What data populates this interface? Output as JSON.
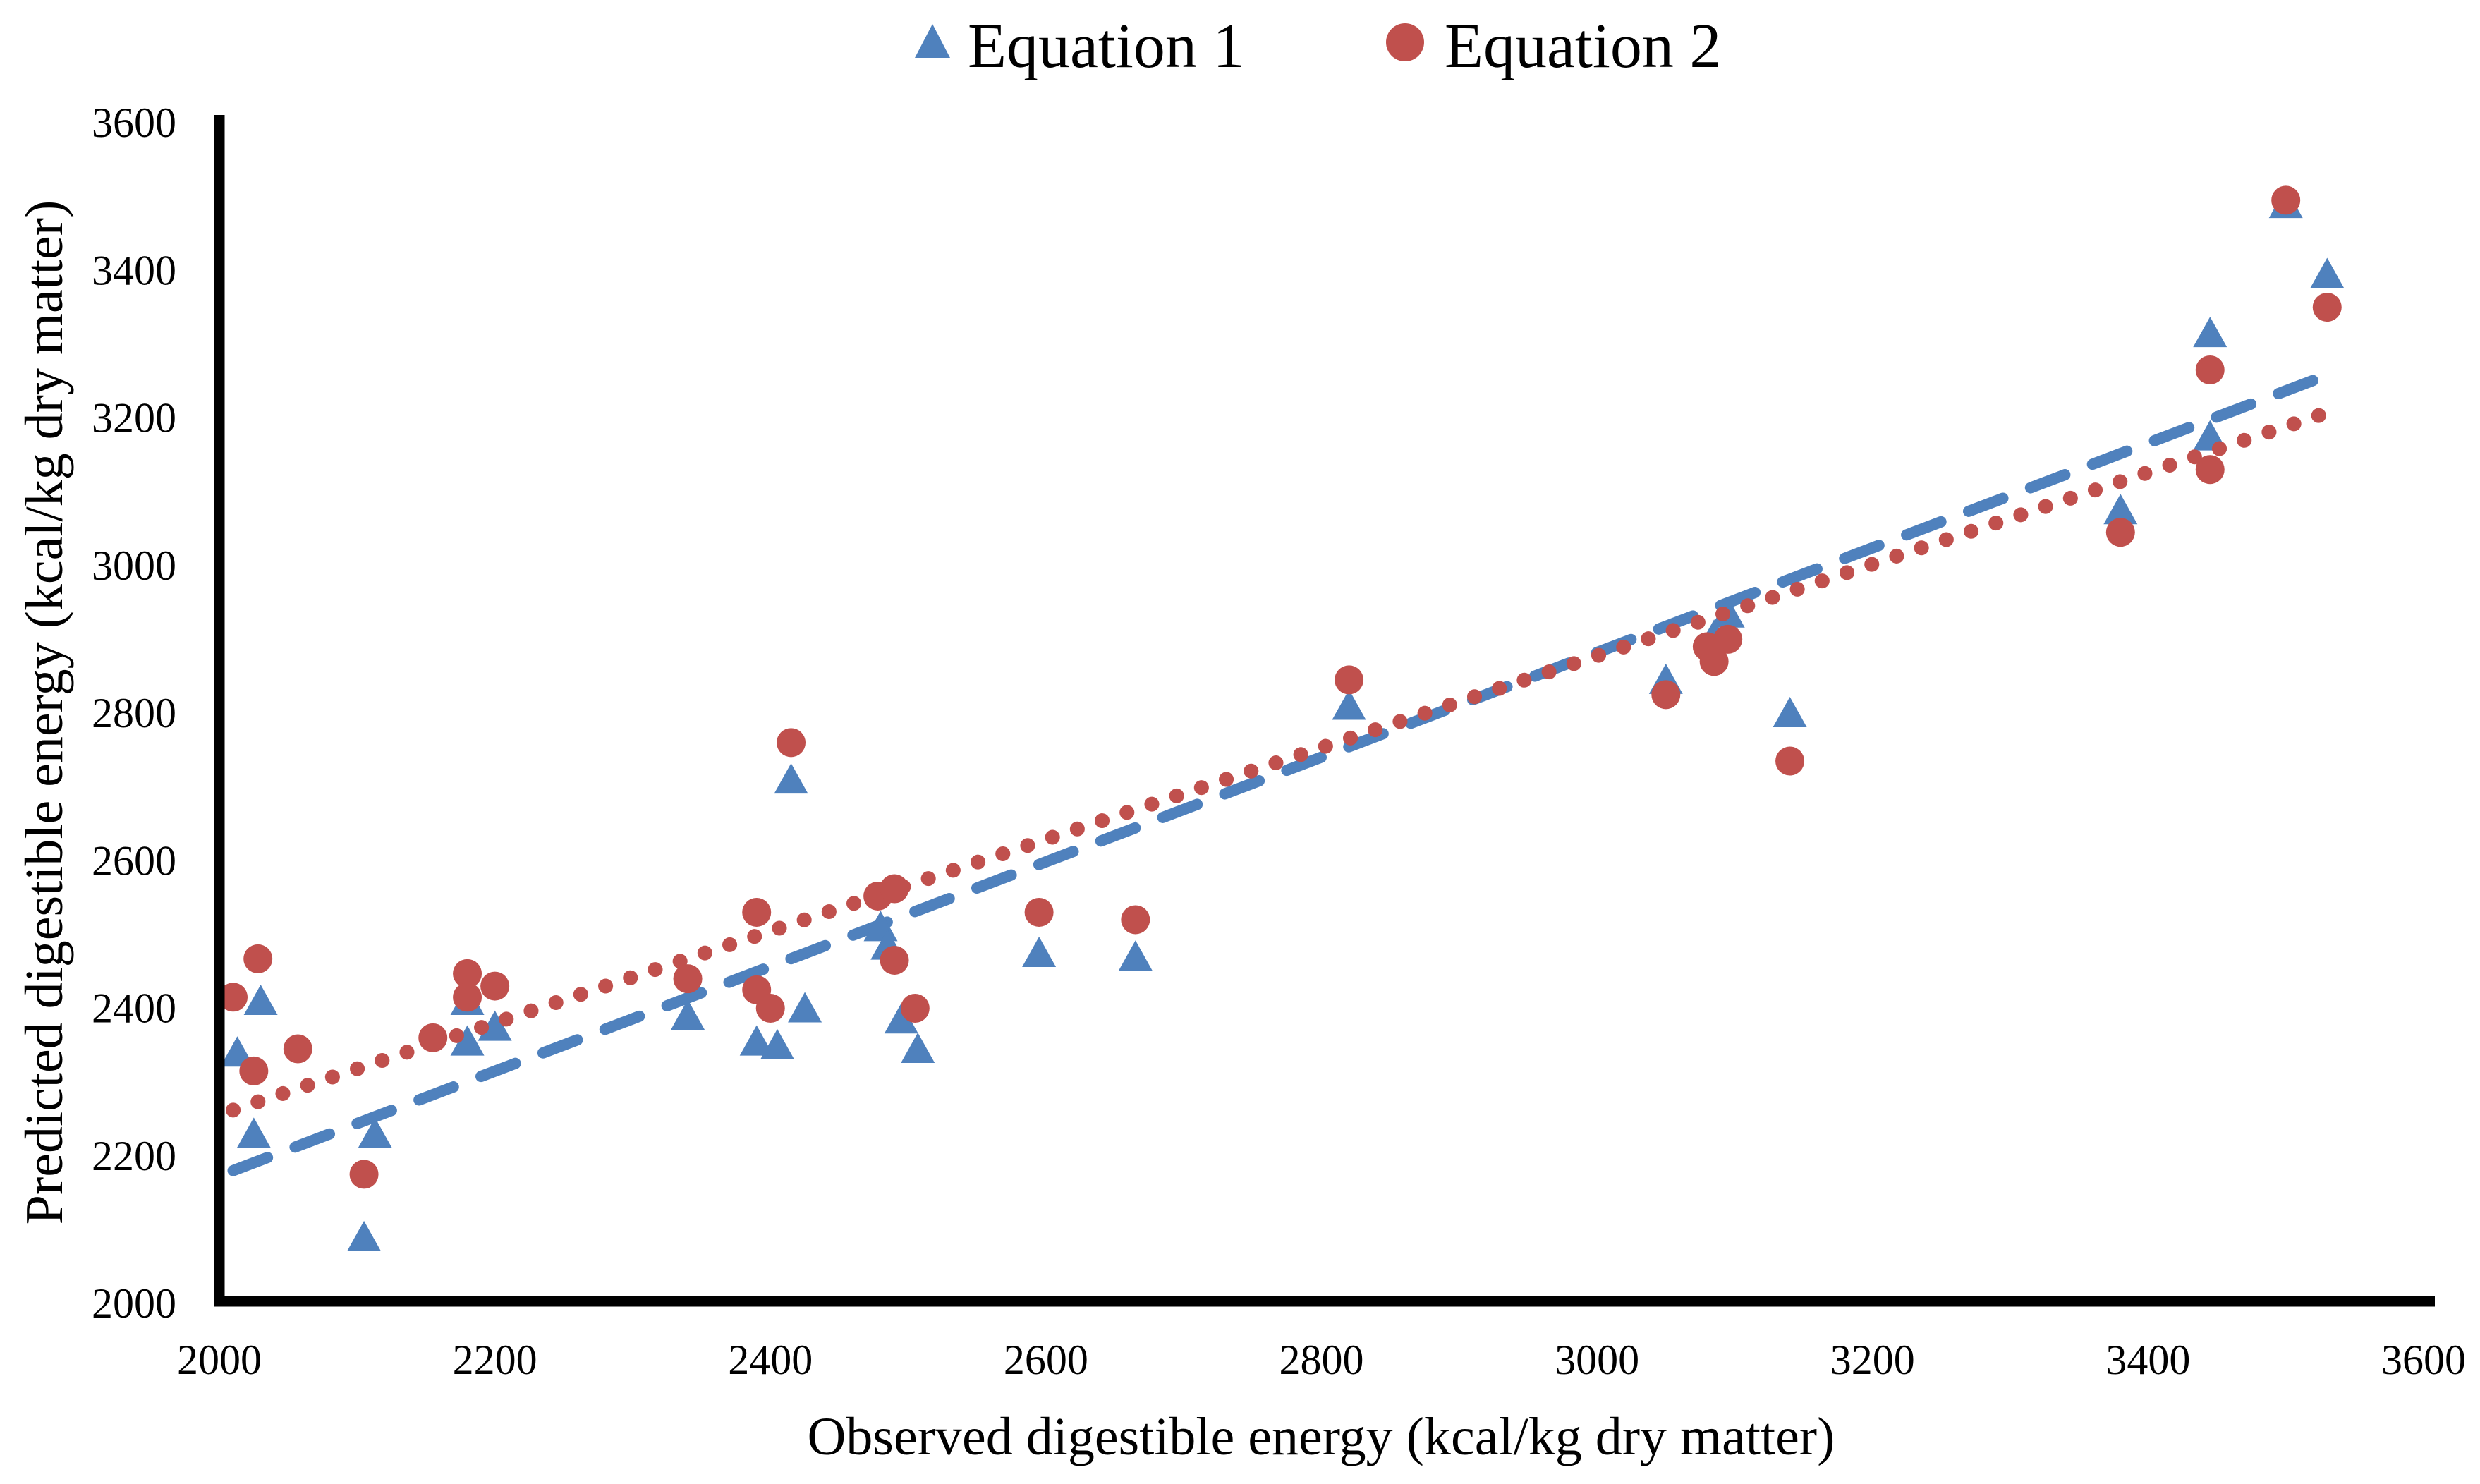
{
  "figure": {
    "background": "#ffffff",
    "axis_color": "#000000",
    "text_color": "#000000"
  },
  "legend": {
    "position": "top-center",
    "items": [
      {
        "label": "Equation 1",
        "marker": "triangle-icon",
        "color": "#4F81BD"
      },
      {
        "label": "Equation 2",
        "marker": "circle-icon",
        "color": "#C0504D"
      }
    ]
  },
  "chart_data": {
    "type": "scatter",
    "title": "",
    "xlabel": "Observed digestible energy (kcal/kg dry matter)",
    "ylabel": "Predicted digestible energy (kcal/kg dry matter)",
    "xlim": [
      2000,
      3600
    ],
    "ylim": [
      2000,
      3600
    ],
    "x_ticks": [
      2000,
      2200,
      2400,
      2600,
      2800,
      3000,
      3200,
      3400,
      3600
    ],
    "y_ticks": [
      2000,
      2200,
      2400,
      2600,
      2800,
      3000,
      3200,
      3400,
      3600
    ],
    "grid": false,
    "legend_position": "top",
    "series": [
      {
        "name": "Equation 1",
        "marker": "triangle",
        "color": "#4F81BD",
        "trendline": {
          "style": "dashed",
          "x1": 2010,
          "y1": 2180,
          "x2": 3530,
          "y2": 3258
        },
        "points": [
          [
            2013,
            2340
          ],
          [
            2025,
            2230
          ],
          [
            2030,
            2410
          ],
          [
            2105,
            2090
          ],
          [
            2113,
            2230
          ],
          [
            2180,
            2410
          ],
          [
            2180,
            2355
          ],
          [
            2200,
            2375
          ],
          [
            2340,
            2390
          ],
          [
            2390,
            2355
          ],
          [
            2405,
            2350
          ],
          [
            2415,
            2710
          ],
          [
            2425,
            2400
          ],
          [
            2480,
            2510
          ],
          [
            2485,
            2485
          ],
          [
            2495,
            2385
          ],
          [
            2507,
            2345
          ],
          [
            2595,
            2475
          ],
          [
            2665,
            2470
          ],
          [
            2820,
            2810
          ],
          [
            3050,
            2845
          ],
          [
            3085,
            2905
          ],
          [
            3095,
            2935
          ],
          [
            3140,
            2800
          ],
          [
            3380,
            3075
          ],
          [
            3445,
            3315
          ],
          [
            3445,
            3175
          ],
          [
            3500,
            3490
          ],
          [
            3530,
            3395
          ]
        ]
      },
      {
        "name": "Equation 2",
        "marker": "circle",
        "color": "#C0504D",
        "trendline": {
          "style": "dotted",
          "x1": 2010,
          "y1": 2262,
          "x2": 3530,
          "y2": 3207
        },
        "points": [
          [
            2010,
            2415
          ],
          [
            2028,
            2467
          ],
          [
            2025,
            2315
          ],
          [
            2057,
            2345
          ],
          [
            2105,
            2175
          ],
          [
            2155,
            2360
          ],
          [
            2180,
            2447
          ],
          [
            2180,
            2415
          ],
          [
            2200,
            2430
          ],
          [
            2340,
            2440
          ],
          [
            2390,
            2530
          ],
          [
            2390,
            2425
          ],
          [
            2400,
            2400
          ],
          [
            2415,
            2760
          ],
          [
            2478,
            2552
          ],
          [
            2490,
            2562
          ],
          [
            2490,
            2465
          ],
          [
            2505,
            2400
          ],
          [
            2595,
            2530
          ],
          [
            2665,
            2520
          ],
          [
            2820,
            2845
          ],
          [
            3050,
            2825
          ],
          [
            3080,
            2890
          ],
          [
            3085,
            2870
          ],
          [
            3095,
            2900
          ],
          [
            3140,
            2735
          ],
          [
            3380,
            3045
          ],
          [
            3445,
            3265
          ],
          [
            3445,
            3130
          ],
          [
            3500,
            3495
          ],
          [
            3530,
            3350
          ]
        ]
      }
    ]
  }
}
